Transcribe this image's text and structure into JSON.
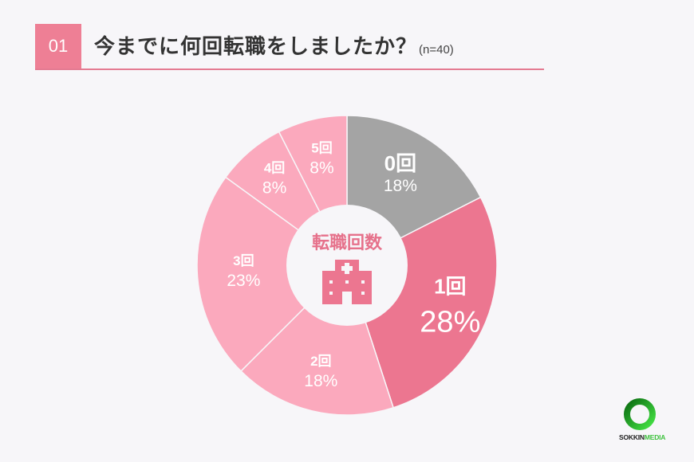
{
  "header": {
    "number": "01",
    "question": "今までに何回転職をしましたか？",
    "sample": "(n=40)"
  },
  "center": {
    "label": "転職回数",
    "icon": "hospital-building-icon"
  },
  "logo": {
    "text_dark": "SOKKIN",
    "text_green": "MEDIA"
  },
  "colors": {
    "accent": "#ee7f95",
    "slice_0": "#a4a4a4",
    "slice_1": "#ec7690",
    "slice_2": "#fba9bd",
    "slice_3": "#fba9bd",
    "slice_4": "#fba9bd",
    "slice_5": "#fba9bd",
    "center_fill": "#f7f6f9",
    "center_text": "#e6718b",
    "background": "#f7f6f9"
  },
  "chart_data": {
    "type": "pie",
    "title": "今までに何回転職をしましたか？ (n=40)",
    "center_label": "転職回数",
    "donut": true,
    "start_angle_deg": 0,
    "direction": "clockwise",
    "categories": [
      "0回",
      "1回",
      "2回",
      "3回",
      "4回",
      "5回"
    ],
    "values": [
      17.5,
      27.5,
      17.5,
      22.5,
      7.5,
      7.5
    ],
    "labels": [
      "18%",
      "28%",
      "18%",
      "23%",
      "8%",
      "8%"
    ],
    "counts": [
      7,
      11,
      7,
      9,
      3,
      3
    ]
  }
}
